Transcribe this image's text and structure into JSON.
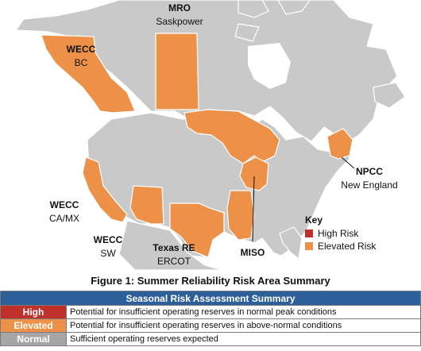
{
  "colors": {
    "land": "#c9c9c9",
    "border": "#ffffff",
    "elevated": "#ee9148",
    "high": "#c0302a",
    "normal": "#a6a6a6",
    "table_header": "#2d5f9a"
  },
  "map": {
    "regions": [
      {
        "code": "MRO",
        "name": "Saskpower",
        "risk": "Elevated"
      },
      {
        "code": "WECC",
        "name": "BC",
        "risk": "Elevated"
      },
      {
        "code": "NPCC",
        "name": "New England",
        "risk": "Elevated"
      },
      {
        "code": "WECC",
        "name": "CA/MX",
        "risk": "Elevated"
      },
      {
        "code": "WECC",
        "name": "SW",
        "risk": "Elevated"
      },
      {
        "code": "Texas RE",
        "name": "ERCOT",
        "risk": "Elevated"
      },
      {
        "code": "MISO",
        "name": "",
        "risk": "Elevated"
      }
    ]
  },
  "key": {
    "title": "Key",
    "items": [
      {
        "label": "High Risk",
        "color": "#c0302a"
      },
      {
        "label": "Elevated Risk",
        "color": "#ee9148"
      }
    ]
  },
  "figure_caption": "Figure 1: Summer Reliability Risk Area Summary",
  "summary_table": {
    "title": "Seasonal Risk Assessment Summary",
    "rows": [
      {
        "level": "High",
        "color": "#c0302a",
        "description": "Potential for insufficient operating reserves in normal peak conditions"
      },
      {
        "level": "Elevated",
        "color": "#ee9148",
        "description": "Potential for insufficient operating reserves in above-normal conditions"
      },
      {
        "level": "Normal",
        "color": "#a6a6a6",
        "description": "Sufficient operating reserves expected"
      }
    ]
  }
}
